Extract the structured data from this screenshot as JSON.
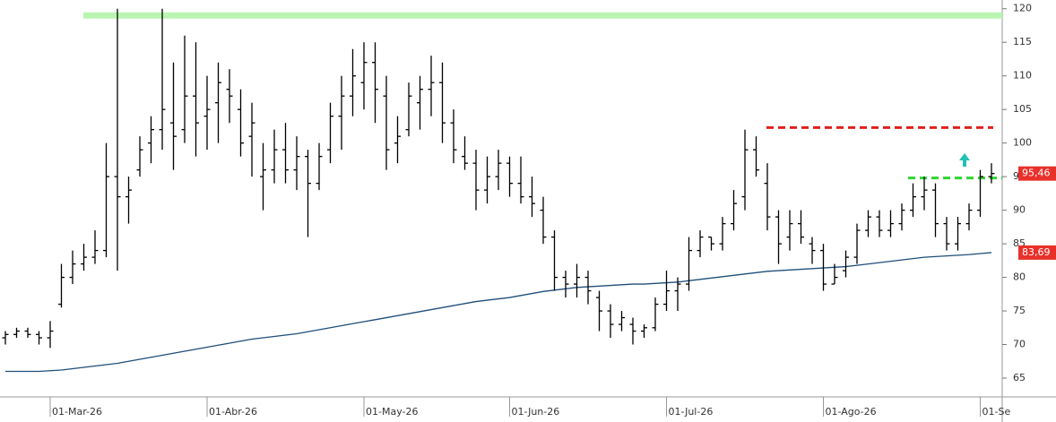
{
  "chart_data": {
    "type": "ohlc",
    "bar_color": "#000000",
    "categories": [
      null,
      null,
      null,
      null,
      "01-Mar-26",
      null,
      null,
      null,
      null,
      null,
      null,
      null,
      null,
      null,
      null,
      null,
      null,
      null,
      "01-Abr-26",
      null,
      null,
      null,
      null,
      null,
      null,
      null,
      null,
      null,
      null,
      null,
      null,
      null,
      "01-May-26",
      null,
      null,
      null,
      null,
      null,
      null,
      null,
      null,
      null,
      null,
      null,
      null,
      "01-Jun-26",
      null,
      null,
      null,
      null,
      null,
      null,
      null,
      null,
      null,
      null,
      null,
      null,
      null,
      "01-Jul-26",
      null,
      null,
      null,
      null,
      null,
      null,
      null,
      null,
      null,
      null,
      null,
      null,
      null,
      "01-Ago-26",
      null,
      null,
      null,
      null,
      null,
      null,
      null,
      null,
      null,
      null,
      null,
      null,
      null,
      "01-Se",
      null
    ],
    "open": [
      71,
      71.5,
      72,
      71.5,
      71,
      76,
      80,
      82,
      83,
      84,
      95,
      92,
      96,
      100,
      102,
      103,
      102,
      107,
      104,
      106,
      108,
      105,
      101,
      95,
      96,
      99,
      96,
      98,
      94,
      99,
      104,
      107,
      109,
      112,
      107,
      100,
      102,
      106,
      108,
      109,
      103,
      98,
      97,
      93,
      95,
      97,
      94,
      92,
      90,
      86,
      80,
      79,
      80,
      77,
      75,
      73,
      73,
      72,
      72.5,
      76,
      78,
      79,
      84,
      86,
      85,
      88,
      92,
      99,
      94,
      89,
      86,
      88,
      85,
      84,
      79,
      81,
      83,
      87,
      89,
      87,
      88,
      90,
      92,
      93,
      88,
      85,
      88,
      90,
      95
    ],
    "high": [
      72,
      72.5,
      72.5,
      72,
      73.5,
      82,
      84,
      85,
      87,
      100,
      120,
      95,
      101,
      104,
      120,
      112,
      116,
      115,
      110,
      112,
      111,
      108,
      106,
      100,
      102,
      103,
      101,
      99,
      100,
      106,
      110,
      114,
      115,
      115,
      110,
      104,
      109,
      110,
      113,
      112,
      105,
      101,
      99,
      98,
      99,
      98,
      98,
      95,
      92,
      87,
      81,
      82,
      81,
      78,
      76,
      75,
      74,
      73,
      77,
      81,
      80,
      86,
      87,
      86,
      89,
      93,
      102,
      101,
      97,
      90,
      90,
      90,
      86,
      85,
      82,
      84,
      88,
      90,
      90,
      90,
      91,
      94,
      95,
      94,
      89,
      89,
      91,
      96,
      97
    ],
    "low": [
      70,
      71,
      71,
      70,
      69.5,
      75.5,
      79,
      81,
      82,
      83,
      81,
      88,
      95,
      97,
      99,
      96,
      100,
      98,
      99,
      100,
      103,
      98,
      95,
      90,
      94,
      94,
      93,
      86,
      93,
      97,
      99,
      104,
      105,
      103,
      96,
      97,
      101,
      102,
      104,
      100,
      97,
      96,
      90,
      91,
      93,
      92,
      91,
      89,
      85,
      78,
      77,
      77,
      76,
      72,
      71,
      72,
      70,
      71,
      72,
      75,
      75,
      78,
      83,
      84,
      84,
      87,
      90,
      95,
      87,
      82,
      84,
      85,
      82,
      78,
      79,
      80,
      82,
      86,
      86,
      86,
      87,
      89,
      90,
      86,
      84,
      84,
      87,
      89,
      94
    ],
    "close": [
      71.5,
      72,
      71.5,
      71,
      72,
      80,
      82,
      83,
      84,
      95,
      92,
      93,
      99,
      102,
      105,
      101,
      107,
      103,
      105,
      109,
      107,
      100,
      103,
      96,
      99,
      96,
      98,
      94,
      98,
      104,
      107,
      110,
      112,
      108,
      99,
      101,
      107,
      108,
      109,
      103,
      99,
      97,
      93,
      95,
      97,
      94,
      92,
      91,
      86,
      80,
      79,
      80,
      78,
      75,
      73,
      74,
      72,
      72.5,
      76,
      78,
      79,
      84,
      86,
      85,
      88,
      91,
      99,
      96,
      89,
      85,
      88,
      86,
      84,
      79,
      80,
      83,
      87,
      89,
      87,
      88,
      90,
      92,
      93,
      88,
      85,
      88,
      90,
      95,
      95.46
    ],
    "moving_average": {
      "color": "#1f4e79",
      "values": [
        66,
        66,
        66,
        66,
        66.1,
        66.2,
        66.4,
        66.6,
        66.8,
        67,
        67.2,
        67.5,
        67.8,
        68.1,
        68.4,
        68.7,
        69,
        69.3,
        69.6,
        69.9,
        70.2,
        70.5,
        70.8,
        71,
        71.2,
        71.4,
        71.6,
        71.9,
        72.2,
        72.5,
        72.8,
        73.1,
        73.4,
        73.7,
        74,
        74.3,
        74.6,
        74.9,
        75.2,
        75.5,
        75.8,
        76.1,
        76.4,
        76.6,
        76.8,
        77,
        77.3,
        77.6,
        77.9,
        78.1,
        78.3,
        78.5,
        78.6,
        78.7,
        78.8,
        78.9,
        79,
        79,
        79.1,
        79.2,
        79.3,
        79.5,
        79.7,
        79.9,
        80.1,
        80.3,
        80.5,
        80.7,
        80.9,
        81,
        81.1,
        81.2,
        81.3,
        81.4,
        81.5,
        81.6,
        81.8,
        82,
        82.2,
        82.4,
        82.6,
        82.8,
        83,
        83.1,
        83.2,
        83.3,
        83.4,
        83.55,
        83.69
      ]
    },
    "levels": [
      {
        "value": 119,
        "color": "#b9f5b0",
        "style": "solid"
      },
      {
        "value": 102.3,
        "color": "#e0201b",
        "style": "dashed"
      },
      {
        "value": 94.8,
        "color": "#2fd62f",
        "style": "dashed"
      }
    ],
    "price_labels": [
      {
        "value": 95.46,
        "label": "95,46",
        "color": "#e8312a"
      },
      {
        "value": 83.69,
        "label": "83,69",
        "color": "#e8312a"
      }
    ],
    "ylim": [
      62.2,
      121.3
    ],
    "yticks": [
      65,
      70,
      75,
      80,
      85,
      90,
      95,
      100,
      105,
      110,
      115,
      120
    ]
  }
}
